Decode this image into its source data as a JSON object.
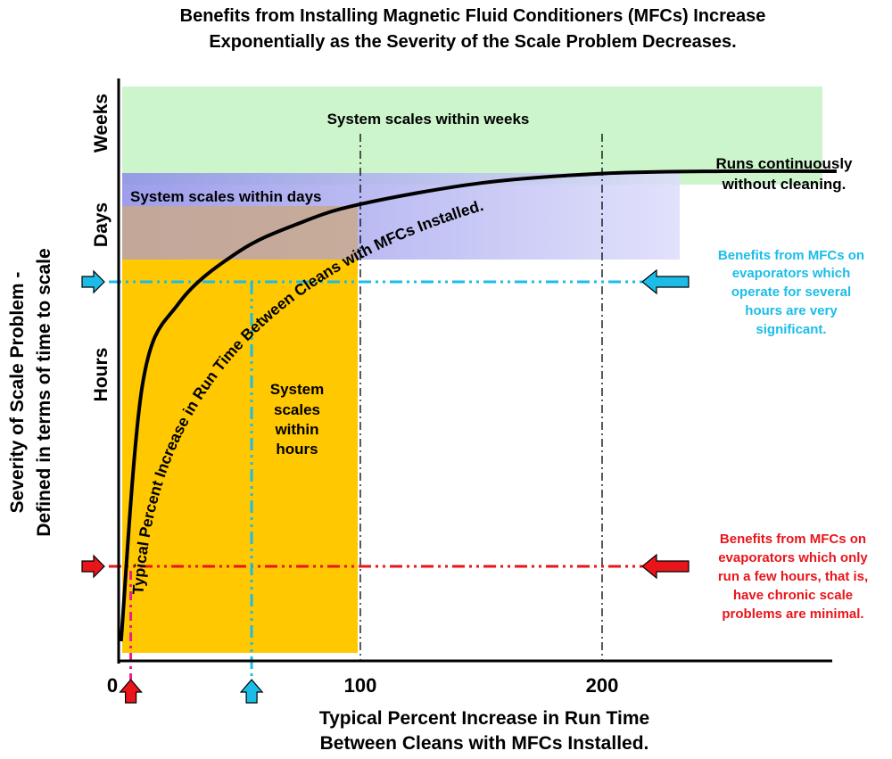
{
  "colors": {
    "weeks_band": "#ccf5cc",
    "days_band": "#9d9df0",
    "hours_band": "#ffc800",
    "cyan": "#1bbde8",
    "red": "#e8151b",
    "pink": "#ee1b8c",
    "curve": "#000000"
  },
  "chart_data": {
    "type": "line",
    "title": "Benefits from Installing Magnetic Fluid Conditioners (MFCs) Increase Exponentially as the Severity of the Scale Problem Decreases.",
    "title_lines": [
      "Benefits from Installing Magnetic Fluid Conditioners (MFCs) Increase",
      "Exponentially as the Severity of the Scale Problem Decreases."
    ],
    "xlabel": "Typical Percent Increase in Run Time Between Cleans with MFCs Installed.",
    "xlabel_lines": [
      "Typical Percent Increase in Run Time",
      "Between Cleans with MFCs Installed."
    ],
    "ylabel": "Severity of Scale Problem - Defined in terms of time to scale",
    "ylabel_lines": [
      "Severity of Scale Problem -",
      "Defined in terms of time to scale"
    ],
    "x_ticks": [
      "0",
      "100",
      "200"
    ],
    "y_categories": [
      "Hours",
      "Days",
      "Weeks"
    ],
    "curve_label": "Typical Percent Increase in Run Time Between Cleans with MFCs Installed.",
    "curve": [
      [
        1,
        0.0
      ],
      [
        10,
        0.55
      ],
      [
        25,
        0.72
      ],
      [
        50,
        0.83
      ],
      [
        75,
        0.89
      ],
      [
        100,
        0.93
      ],
      [
        150,
        0.975
      ],
      [
        200,
        0.995
      ],
      [
        250,
        1.0
      ],
      [
        297,
        1.0
      ]
    ],
    "markers": {
      "cyan_x": 55,
      "red_x": 5,
      "vertical_lines_x": [
        100,
        200
      ]
    },
    "regions": {
      "weeks": "System scales within weeks",
      "days": "System scales within days",
      "hours": [
        "System",
        "scales",
        "within",
        "hours"
      ]
    },
    "annotations": {
      "runs_continuously": [
        "Runs continuously",
        "without cleaning."
      ],
      "cyan_note": [
        "Benefits from MFCs on",
        "evaporators which",
        "operate for several",
        "hours are very",
        "significant."
      ],
      "red_note": [
        "Benefits from MFCs on",
        "evaporators which only",
        "run a few hours, that is,",
        "have chronic scale",
        "problems are minimal."
      ]
    }
  }
}
